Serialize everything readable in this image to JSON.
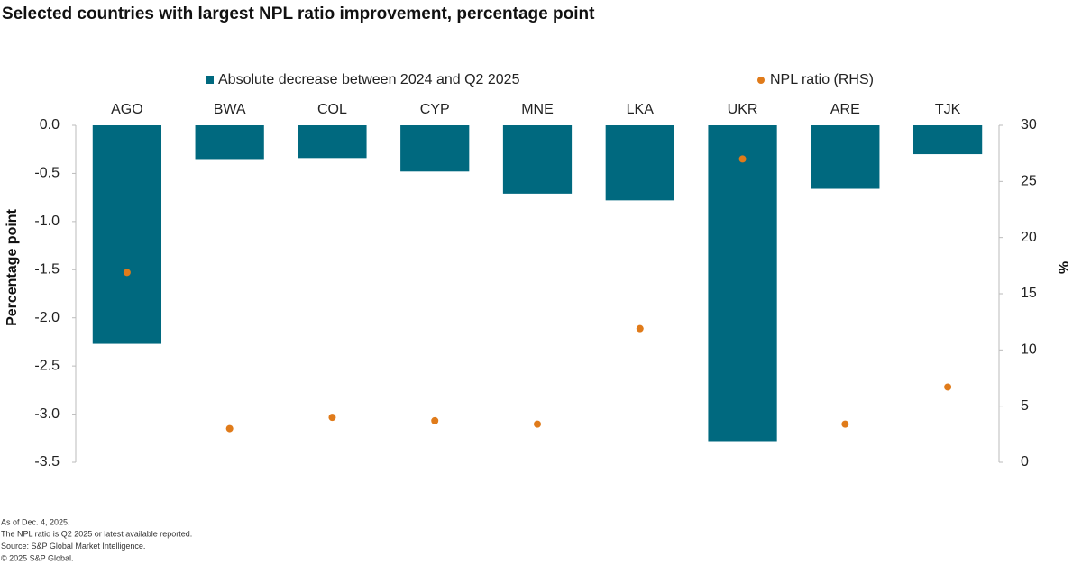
{
  "chart_data": {
    "type": "bar",
    "title": "Selected countries with largest NPL ratio improvement, percentage point",
    "categories": [
      "AGO",
      "BWA",
      "COL",
      "CYP",
      "MNE",
      "LKA",
      "UKR",
      "ARE",
      "TJK"
    ],
    "series": [
      {
        "name": "Absolute decrease between 2024 and Q2 2025",
        "type": "bar",
        "color": "#00697f",
        "values": [
          -2.27,
          -0.36,
          -0.34,
          -0.48,
          -0.71,
          -0.78,
          -3.28,
          -0.66,
          -0.3
        ]
      },
      {
        "name": "NPL ratio (RHS)",
        "type": "scatter",
        "axis": "y2",
        "color": "#e07b1a",
        "values": [
          16.9,
          3.0,
          4.0,
          3.7,
          3.4,
          11.9,
          27.0,
          3.4,
          6.7
        ]
      }
    ],
    "ylabel": "Percentage point",
    "y2label": "%",
    "ylim": [
      0,
      -3.5
    ],
    "yticks": [
      {
        "value": 0,
        "label": "0.0"
      },
      -0.5,
      {
        "value": -1,
        "label": "-1.0"
      },
      -1.5,
      {
        "value": -2,
        "label": "-2.0"
      },
      -2.5,
      {
        "value": -3,
        "label": "-3.0"
      },
      -3.5
    ],
    "y2lim": [
      30,
      0
    ],
    "y2ticks": [
      30,
      25,
      20,
      15,
      10,
      5,
      0
    ],
    "notes": [
      "As of Dec. 4, 2025.",
      "The NPL ratio is Q2 2025 or latest available reported.",
      "Source: S&P Global Market Intelligence.",
      "© 2025 S&P Global."
    ]
  }
}
